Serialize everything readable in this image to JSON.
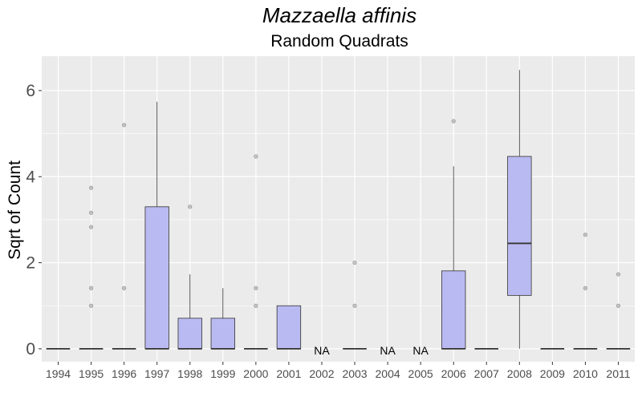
{
  "chart_data": {
    "type": "box",
    "title": "Mazzaella affinis",
    "subtitle": "Random Quadrats",
    "xlabel": "",
    "ylabel": "Sqrt of Count",
    "ylim": [
      -0.3,
      6.8
    ],
    "yticks": [
      0,
      2,
      4,
      6
    ],
    "grid": true,
    "colors": {
      "panel": "#ebebeb",
      "grid": "#ffffff",
      "box_fill": "#babaf2",
      "box_stroke": "#333333",
      "outlier": "#999999"
    },
    "na_label": "NA",
    "categories": [
      "1994",
      "1995",
      "1996",
      "1997",
      "1998",
      "1999",
      "2000",
      "2001",
      "2002",
      "2003",
      "2004",
      "2005",
      "2006",
      "2007",
      "2008",
      "2009",
      "2010",
      "2011"
    ],
    "boxes": [
      {
        "x": "1994",
        "q1": 0,
        "median": 0,
        "q3": 0,
        "whisker_low": 0,
        "whisker_high": 0,
        "outliers": []
      },
      {
        "x": "1995",
        "q1": 0,
        "median": 0,
        "q3": 0,
        "whisker_low": 0,
        "whisker_high": 0,
        "outliers": [
          1.0,
          1.41,
          2.83,
          3.16,
          3.74
        ]
      },
      {
        "x": "1996",
        "q1": 0,
        "median": 0,
        "q3": 0,
        "whisker_low": 0,
        "whisker_high": 0,
        "outliers": [
          1.41,
          5.2
        ]
      },
      {
        "x": "1997",
        "q1": 0,
        "median": 0,
        "q3": 3.3,
        "whisker_low": 0,
        "whisker_high": 5.74,
        "outliers": []
      },
      {
        "x": "1998",
        "q1": 0,
        "median": 0,
        "q3": 0.71,
        "whisker_low": 0,
        "whisker_high": 1.73,
        "outliers": [
          3.3
        ]
      },
      {
        "x": "1999",
        "q1": 0,
        "median": 0,
        "q3": 0.71,
        "whisker_low": 0,
        "whisker_high": 1.41,
        "outliers": []
      },
      {
        "x": "2000",
        "q1": 0,
        "median": 0,
        "q3": 0,
        "whisker_low": 0,
        "whisker_high": 0,
        "outliers": [
          1.0,
          1.41,
          4.47
        ]
      },
      {
        "x": "2001",
        "q1": 0,
        "median": 0,
        "q3": 1.0,
        "whisker_low": 0,
        "whisker_high": 1.0,
        "outliers": []
      },
      {
        "x": "2002",
        "na": true
      },
      {
        "x": "2003",
        "q1": 0,
        "median": 0,
        "q3": 0,
        "whisker_low": 0,
        "whisker_high": 0,
        "outliers": [
          1.0,
          2.0
        ]
      },
      {
        "x": "2004",
        "na": true
      },
      {
        "x": "2005",
        "na": true
      },
      {
        "x": "2006",
        "q1": 0,
        "median": 0,
        "q3": 1.81,
        "whisker_low": 0,
        "whisker_high": 4.24,
        "outliers": [
          5.29
        ]
      },
      {
        "x": "2007",
        "q1": 0,
        "median": 0,
        "q3": 0,
        "whisker_low": 0,
        "whisker_high": 0,
        "outliers": []
      },
      {
        "x": "2008",
        "q1": 1.24,
        "median": 2.45,
        "q3": 4.47,
        "whisker_low": 0,
        "whisker_high": 6.48,
        "outliers": []
      },
      {
        "x": "2009",
        "q1": 0,
        "median": 0,
        "q3": 0,
        "whisker_low": 0,
        "whisker_high": 0,
        "outliers": []
      },
      {
        "x": "2010",
        "q1": 0,
        "median": 0,
        "q3": 0,
        "whisker_low": 0,
        "whisker_high": 0,
        "outliers": [
          1.41,
          2.65
        ]
      },
      {
        "x": "2011",
        "q1": 0,
        "median": 0,
        "q3": 0,
        "whisker_low": 0,
        "whisker_high": 0,
        "outliers": [
          1.0,
          1.73
        ]
      }
    ]
  }
}
